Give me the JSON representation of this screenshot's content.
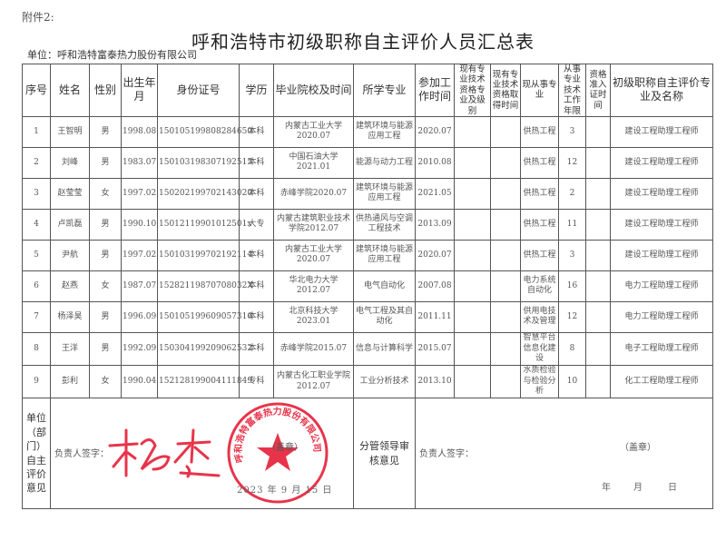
{
  "attachment_label": "附件2:",
  "title": "呼和浩特市初级职称自主评价人员汇总表",
  "unit_line": "单位：呼和浩特富泰热力股份有限公司",
  "table": {
    "headers": [
      "序号",
      "姓名",
      "性别",
      "出生年月",
      "身份证号",
      "学历",
      "毕业院校及时间",
      "所学专业",
      "参加工作时间",
      "现有专业技术资格专业及级别",
      "现有专业技术资格取得时间",
      "现从事专业",
      "从事专业技术工作年限",
      "资格准入证时间",
      "初级职称自主评价专业及名称"
    ],
    "rows": [
      [
        "1",
        "王智明",
        "男",
        "1998.08",
        "150105199808284650",
        "本科",
        "内蒙古工业大学2020.07",
        "建筑环境与能源应用工程",
        "2020.07",
        "",
        "",
        "供热工程",
        "3",
        "",
        "建设工程助理工程师"
      ],
      [
        "2",
        "刘峰",
        "男",
        "1983.07",
        "150103198307192515",
        "本科",
        "中国石油大学2021.01",
        "能源与动力工程",
        "2010.08",
        "",
        "",
        "供热工程",
        "12",
        "",
        "建设工程助理工程师"
      ],
      [
        "3",
        "赵莹莹",
        "女",
        "1997.02",
        "150202199702143020",
        "本科",
        "赤峰学院2020.07",
        "建筑环境与能源应用工程",
        "2021.05",
        "",
        "",
        "供热工程",
        "2",
        "",
        "建设工程助理工程师"
      ],
      [
        "4",
        "卢凯磊",
        "男",
        "1990.10",
        "15012119901012501x",
        "大专",
        "内蒙古建筑职业技术学院2012.07",
        "供热通风与空调工程技术",
        "2013.09",
        "",
        "",
        "供热工程",
        "11",
        "",
        "建设工程助理工程师"
      ],
      [
        "5",
        "尹航",
        "男",
        "1997.02",
        "150103199702192114",
        "本科",
        "内蒙古工业大学2020.07",
        "建筑环境与能源应用工程",
        "2020.07",
        "",
        "",
        "供热工程",
        "3",
        "",
        "建设工程助理工程师"
      ],
      [
        "6",
        "赵燕",
        "女",
        "1987.07",
        "15282119870708032X",
        "本科",
        "华北电力大学2012.07",
        "电气自动化",
        "2007.08",
        "",
        "",
        "电力系统自动化",
        "16",
        "",
        "电力工程助理工程师"
      ],
      [
        "7",
        "杨泽昊",
        "男",
        "1996.09",
        "150105199609057316",
        "本科",
        "北京科技大学2023.01",
        "电气工程及其自动化",
        "2011.11",
        "",
        "",
        "供用电技术及管理",
        "12",
        "",
        "电力工程助理工程师"
      ],
      [
        "8",
        "王洋",
        "男",
        "1992.09",
        "150304199209062532",
        "本科",
        "赤峰学院2015.07",
        "信息与计算科学",
        "2015.07",
        "",
        "",
        "智慧平台信息化建设",
        "8",
        "",
        "电子工程助理工程师"
      ],
      [
        "9",
        "彭利",
        "女",
        "1990.04",
        "152128199004111849",
        "专科",
        "内蒙古化工职业学院2012.07",
        "工业分析技术",
        "2013.10",
        "",
        "",
        "水质检验与检验分析",
        "10",
        "",
        "化工工程助理工程师"
      ]
    ]
  },
  "unit_opinion": {
    "label": "单位（部门）自主评价意见",
    "signer_label": "负责人签字：",
    "signature": "杨杰",
    "seal_label": "（盖章）",
    "date": "2023 年 9 月 15 日",
    "seal_text": "呼和浩特富泰热力股份有限公司"
  },
  "leader_opinion": {
    "label": "分管领导审核意见",
    "signer_label": "负责人签字：",
    "seal_label": "（盖章）",
    "date_year": "年",
    "date_month": "月",
    "date_day": "日"
  },
  "colors": {
    "seal_red": "#e8344a",
    "ink": "#333333"
  }
}
